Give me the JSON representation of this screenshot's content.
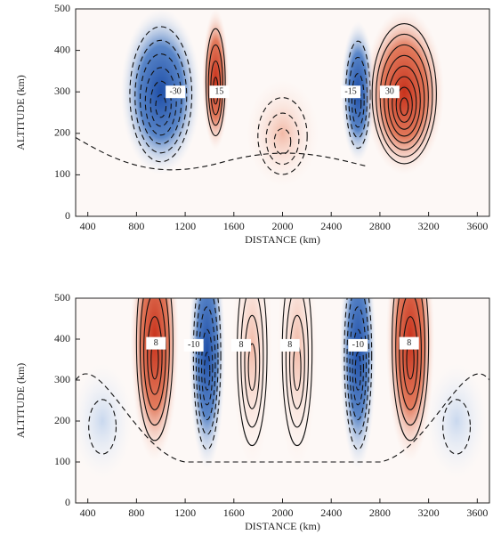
{
  "chart_data": [
    {
      "type": "contour",
      "xlabel": "DISTANCE (km)",
      "ylabel": "ALTITUDE (km)",
      "xlim": [
        300,
        3700
      ],
      "ylim": [
        0,
        500
      ],
      "xticks": [
        400,
        800,
        1200,
        1600,
        2000,
        2400,
        2800,
        3200,
        3600
      ],
      "yticks": [
        0,
        100,
        200,
        300,
        400,
        500
      ],
      "contour_labels": [
        -30,
        15,
        -15,
        30
      ]
    },
    {
      "type": "contour",
      "xlabel": "DISTANCE (km)",
      "ylabel": "ALTITUDE (km)",
      "xlim": [
        300,
        3700
      ],
      "ylim": [
        0,
        500
      ],
      "xticks": [
        400,
        800,
        1200,
        1600,
        2000,
        2400,
        2800,
        3200,
        3600
      ],
      "yticks": [
        0,
        100,
        200,
        300,
        400,
        500
      ],
      "contour_labels": [
        8,
        -10,
        8,
        8,
        -10,
        8
      ]
    }
  ]
}
